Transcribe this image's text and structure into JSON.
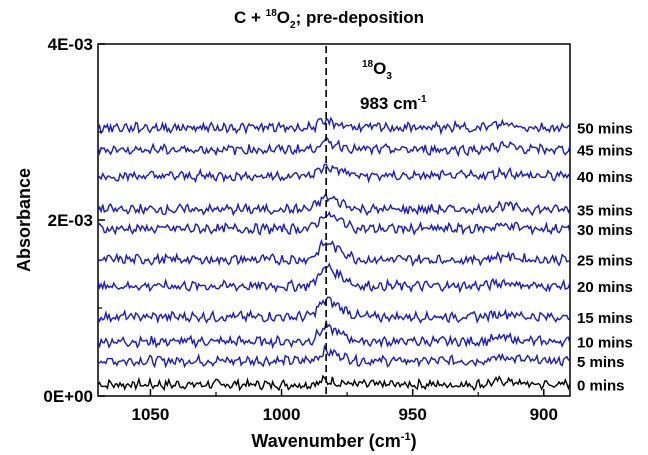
{
  "chart_data": {
    "type": "line",
    "title": {
      "prefix": "C + ",
      "sup": "18",
      "mid": "O",
      "sub": "2",
      "suffix": "; pre-deposition"
    },
    "xlabel": {
      "text": "Wavenumber (cm",
      "sup": "-1",
      "close": ")"
    },
    "ylabel": "Absorbance",
    "xlim": [
      1070,
      890
    ],
    "ylim": [
      0,
      0.004
    ],
    "x_ticks": [
      1050,
      1000,
      950,
      900
    ],
    "x_tick_labels": [
      "1050",
      "1000",
      "950",
      "900"
    ],
    "y_ticks": [
      0,
      0.002,
      0.004
    ],
    "y_tick_labels": [
      "0E+00",
      "2E-03",
      "4E-03"
    ],
    "grid": false,
    "reference_line": {
      "x": 983,
      "style": "dashed"
    },
    "annotation": {
      "sup": "18",
      "species": "O",
      "sub": "3",
      "value": "983 cm",
      "value_sup": "-1"
    },
    "peak": {
      "center": 983,
      "width": 4
    },
    "series": [
      {
        "name": "0 mins",
        "offset": 0.00013,
        "peak_height": 4e-05,
        "color": "#000000"
      },
      {
        "name": "5 mins",
        "offset": 0.0004,
        "peak_height": 0.0001,
        "color": "#1a1ac8"
      },
      {
        "name": "10 mins",
        "offset": 0.00062,
        "peak_height": 0.00015,
        "color": "#1a1ac8"
      },
      {
        "name": "15 mins",
        "offset": 0.0009,
        "peak_height": 0.00018,
        "color": "#1a1ac8"
      },
      {
        "name": "20 mins",
        "offset": 0.00125,
        "peak_height": 0.0002,
        "color": "#1a1ac8"
      },
      {
        "name": "25 mins",
        "offset": 0.00155,
        "peak_height": 0.00018,
        "color": "#1a1ac8"
      },
      {
        "name": "30 mins",
        "offset": 0.0019,
        "peak_height": 0.00015,
        "color": "#1a1ac8"
      },
      {
        "name": "35 mins",
        "offset": 0.00212,
        "peak_height": 0.00013,
        "color": "#1a1ac8"
      },
      {
        "name": "40 mins",
        "offset": 0.0025,
        "peak_height": 0.0001,
        "color": "#1a1ac8"
      },
      {
        "name": "45 mins",
        "offset": 0.0028,
        "peak_height": 8e-05,
        "color": "#1a1ac8"
      },
      {
        "name": "50 mins",
        "offset": 0.00305,
        "peak_height": 6e-05,
        "color": "#1a1ac8"
      }
    ]
  }
}
